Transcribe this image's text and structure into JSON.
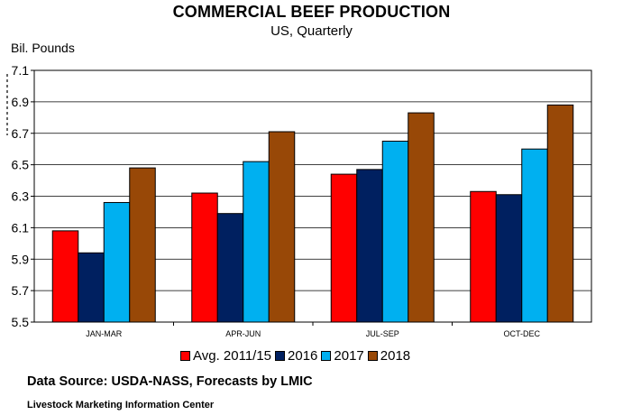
{
  "chart_data": {
    "type": "bar",
    "title": "COMMERCIAL BEEF PRODUCTION",
    "subtitle": "US, Quarterly",
    "ylabel": "Bil. Pounds",
    "xlabel": "",
    "ylim": [
      5.5,
      7.1
    ],
    "yticks": [
      "5.5",
      "5.7",
      "5.9",
      "6.1",
      "6.3",
      "6.5",
      "6.7",
      "6.9",
      "7.1"
    ],
    "categories": [
      "JAN-MAR",
      "APR-JUN",
      "JUL-SEP",
      "OCT-DEC"
    ],
    "series": [
      {
        "name": "Avg. 2011/15",
        "color": "#ff0000",
        "values": [
          6.08,
          6.32,
          6.44,
          6.33
        ]
      },
      {
        "name": "2016",
        "color": "#002060",
        "values": [
          5.94,
          6.19,
          6.47,
          6.31
        ]
      },
      {
        "name": "2017",
        "color": "#00b0f0",
        "values": [
          6.26,
          6.52,
          6.65,
          6.6
        ]
      },
      {
        "name": "2018",
        "color": "#984807",
        "values": [
          6.48,
          6.71,
          6.83,
          6.88
        ]
      }
    ],
    "grid": true,
    "legend_position": "bottom"
  },
  "source_text": "Data Source:  USDA-NASS, Forecasts by LMIC",
  "footer_text": "Livestock Marketing Information Center"
}
